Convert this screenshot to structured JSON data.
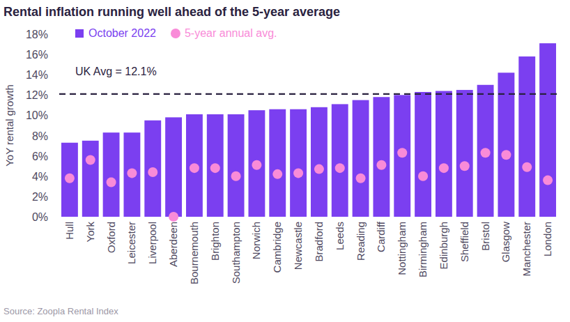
{
  "chart_data": {
    "type": "bar",
    "title": "Rental inflation running well ahead of the 5-year average",
    "y_label": "YoY rental growth",
    "source": "Source: Zoopla Rental Index",
    "categories": [
      "Hull",
      "York",
      "Oxford",
      "Leicester",
      "Liverpool",
      "Aberdeen",
      "Bournemouth",
      "Brighton",
      "Southampton",
      "Norwich",
      "Cambridge",
      "Newcastle",
      "Bradford",
      "Leeds",
      "Reading",
      "Cardiff",
      "Nottingham",
      "Birmingham",
      "Edinburgh",
      "Sheffield",
      "Bristol",
      "Glasgow",
      "Manchester",
      "London"
    ],
    "series": [
      {
        "name": "October 2022",
        "type": "bar",
        "color": "#7b3ff0",
        "values": [
          7.3,
          7.5,
          8.3,
          8.3,
          9.5,
          9.8,
          10.1,
          10.1,
          10.1,
          10.5,
          10.6,
          10.6,
          10.8,
          11.1,
          11.5,
          11.8,
          12.0,
          12.3,
          12.4,
          12.5,
          13.0,
          14.2,
          15.8,
          17.1
        ]
      },
      {
        "name": "5-year annual avg.",
        "type": "scatter",
        "marker": "circle",
        "color": "#f98bd8",
        "values": [
          3.8,
          5.6,
          3.4,
          4.3,
          4.4,
          0.0,
          4.8,
          4.8,
          4.0,
          5.1,
          4.2,
          4.3,
          4.7,
          4.8,
          3.8,
          5.1,
          6.3,
          4.0,
          4.8,
          5.0,
          6.3,
          6.1,
          4.9,
          3.6
        ]
      }
    ],
    "reference_line": {
      "value": 12.1,
      "label": "UK Avg = 12.1%"
    },
    "ylim": [
      0,
      18
    ],
    "yticks": [
      {
        "value": 0,
        "label": "0%"
      },
      {
        "value": 2,
        "label": "2%"
      },
      {
        "value": 4,
        "label": "4%"
      },
      {
        "value": 6,
        "label": "6%"
      },
      {
        "value": 8,
        "label": "8%"
      },
      {
        "value": 10,
        "label": "10%"
      },
      {
        "value": 12,
        "label": "12%"
      },
      {
        "value": 14,
        "label": "14%"
      },
      {
        "value": 16,
        "label": "16%"
      },
      {
        "value": 18,
        "label": "18%"
      }
    ],
    "grid": false,
    "legend": "top-left"
  }
}
